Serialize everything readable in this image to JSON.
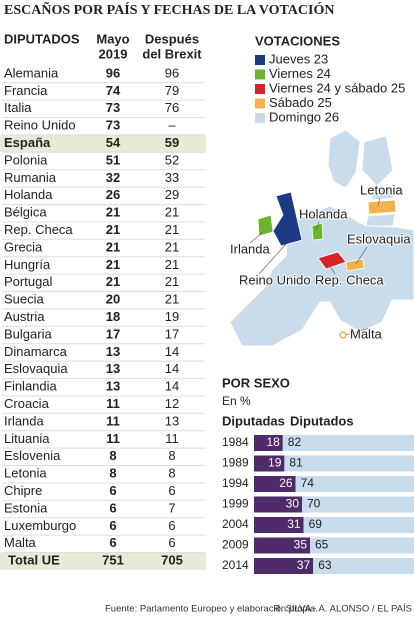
{
  "header": {
    "title": "ESCAÑOS POR PAÍS Y FECHAS DE LA VOTACIÓN"
  },
  "table": {
    "columns": [
      "DIPUTADOS",
      [
        "Mayo",
        "2019"
      ],
      [
        "Después",
        "del Brexit"
      ]
    ],
    "highlighted_rows": [
      4,
      28
    ],
    "rows": [
      [
        "Alemania",
        96,
        96
      ],
      [
        "Francia",
        74,
        79
      ],
      [
        "Italia",
        73,
        76
      ],
      [
        "Reino Unido",
        73,
        "–"
      ],
      [
        "España",
        54,
        59
      ],
      [
        "Polonia",
        51,
        52
      ],
      [
        "Rumania",
        32,
        33
      ],
      [
        "Holanda",
        26,
        29
      ],
      [
        "Bélgica",
        21,
        21
      ],
      [
        "Rep. Checa",
        21,
        21
      ],
      [
        "Grecia",
        21,
        21
      ],
      [
        "Hungría",
        21,
        21
      ],
      [
        "Portugal",
        21,
        21
      ],
      [
        "Suecia",
        20,
        21
      ],
      [
        "Austria",
        18,
        19
      ],
      [
        "Bulgaria",
        17,
        17
      ],
      [
        "Dinamarca",
        13,
        14
      ],
      [
        "Eslovaquia",
        13,
        14
      ],
      [
        "Finlandia",
        13,
        14
      ],
      [
        "Croacia",
        11,
        12
      ],
      [
        "Irlanda",
        11,
        13
      ],
      [
        "Lituania",
        11,
        11
      ],
      [
        "Eslovenia",
        8,
        8
      ],
      [
        "Letonia",
        8,
        8
      ],
      [
        "Chipre",
        6,
        6
      ],
      [
        "Estonia",
        6,
        7
      ],
      [
        "Luxemburgo",
        6,
        6
      ],
      [
        "Malta",
        6,
        6
      ],
      [
        "Total UE",
        751,
        705
      ]
    ]
  },
  "map": {
    "title": "VOTACIONES",
    "legend": [
      {
        "label": "Jueves 23",
        "color": "#1d3b85"
      },
      {
        "label": "Viernes 24",
        "color": "#6cb52f"
      },
      {
        "label": "Viernes 24 y sábado 25",
        "color": "#d8232a"
      },
      {
        "label": "Sábado 25",
        "color": "#f4b24f"
      },
      {
        "label": "Domingo 26",
        "color": "#c9dcec"
      }
    ],
    "labels": [
      "Letonia",
      "Holanda",
      "Irlanda",
      "Eslovaquia",
      "Reino Unido",
      "Rep. Checa",
      "Malta"
    ]
  },
  "chart_data": {
    "type": "bar",
    "stacked": true,
    "orientation": "horizontal",
    "title": "POR SEXO",
    "subtitle": "En %",
    "categories": [
      "1984",
      "1989",
      "1994",
      "1999",
      "2004",
      "2009",
      "2014"
    ],
    "series": [
      {
        "name": "Diputadas",
        "color": "#4f2b6b",
        "values": [
          18,
          19,
          26,
          30,
          31,
          35,
          37
        ]
      },
      {
        "name": "Diputados",
        "color": "#c9dcec",
        "values": [
          82,
          81,
          74,
          70,
          69,
          65,
          63
        ]
      }
    ]
  },
  "footer": {
    "source": "Fuente: Parlamento Europeo y elaboración propia.",
    "credit": "R. SILVA - A. ALONSO / EL PAÍS"
  }
}
